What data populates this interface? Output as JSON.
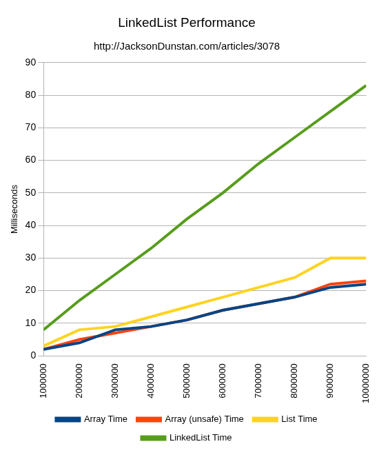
{
  "chart_data": {
    "type": "line",
    "title": "LinkedList Performance",
    "subtitle": "http://JacksonDunstan.com/articles/3078",
    "y_label": "Milliseconds",
    "categories": [
      "1000000",
      "2000000",
      "3000000",
      "4000000",
      "5000000",
      "6000000",
      "7000000",
      "8000000",
      "9000000",
      "10000000"
    ],
    "series": [
      {
        "name": "Array Time",
        "color": "#004586",
        "values": [
          2,
          4,
          8,
          9,
          11,
          14,
          16,
          18,
          21,
          22
        ]
      },
      {
        "name": "Array (unsafe) Time",
        "color": "#ff420e",
        "values": [
          2,
          5,
          7,
          9,
          11,
          14,
          16,
          18,
          22,
          23
        ]
      },
      {
        "name": "List Time",
        "color": "#ffd320",
        "values": [
          3,
          8,
          9,
          12,
          15,
          18,
          21,
          24,
          30,
          30
        ]
      },
      {
        "name": "LinkedList Time",
        "color": "#579d1c",
        "values": [
          8,
          17,
          25,
          33,
          42,
          50,
          59,
          67,
          75,
          83
        ]
      }
    ],
    "ylim": [
      0,
      90
    ],
    "yticks": [
      0,
      10,
      20,
      30,
      40,
      50,
      60,
      70,
      80,
      90
    ],
    "grid": true,
    "legend": "bottom"
  }
}
